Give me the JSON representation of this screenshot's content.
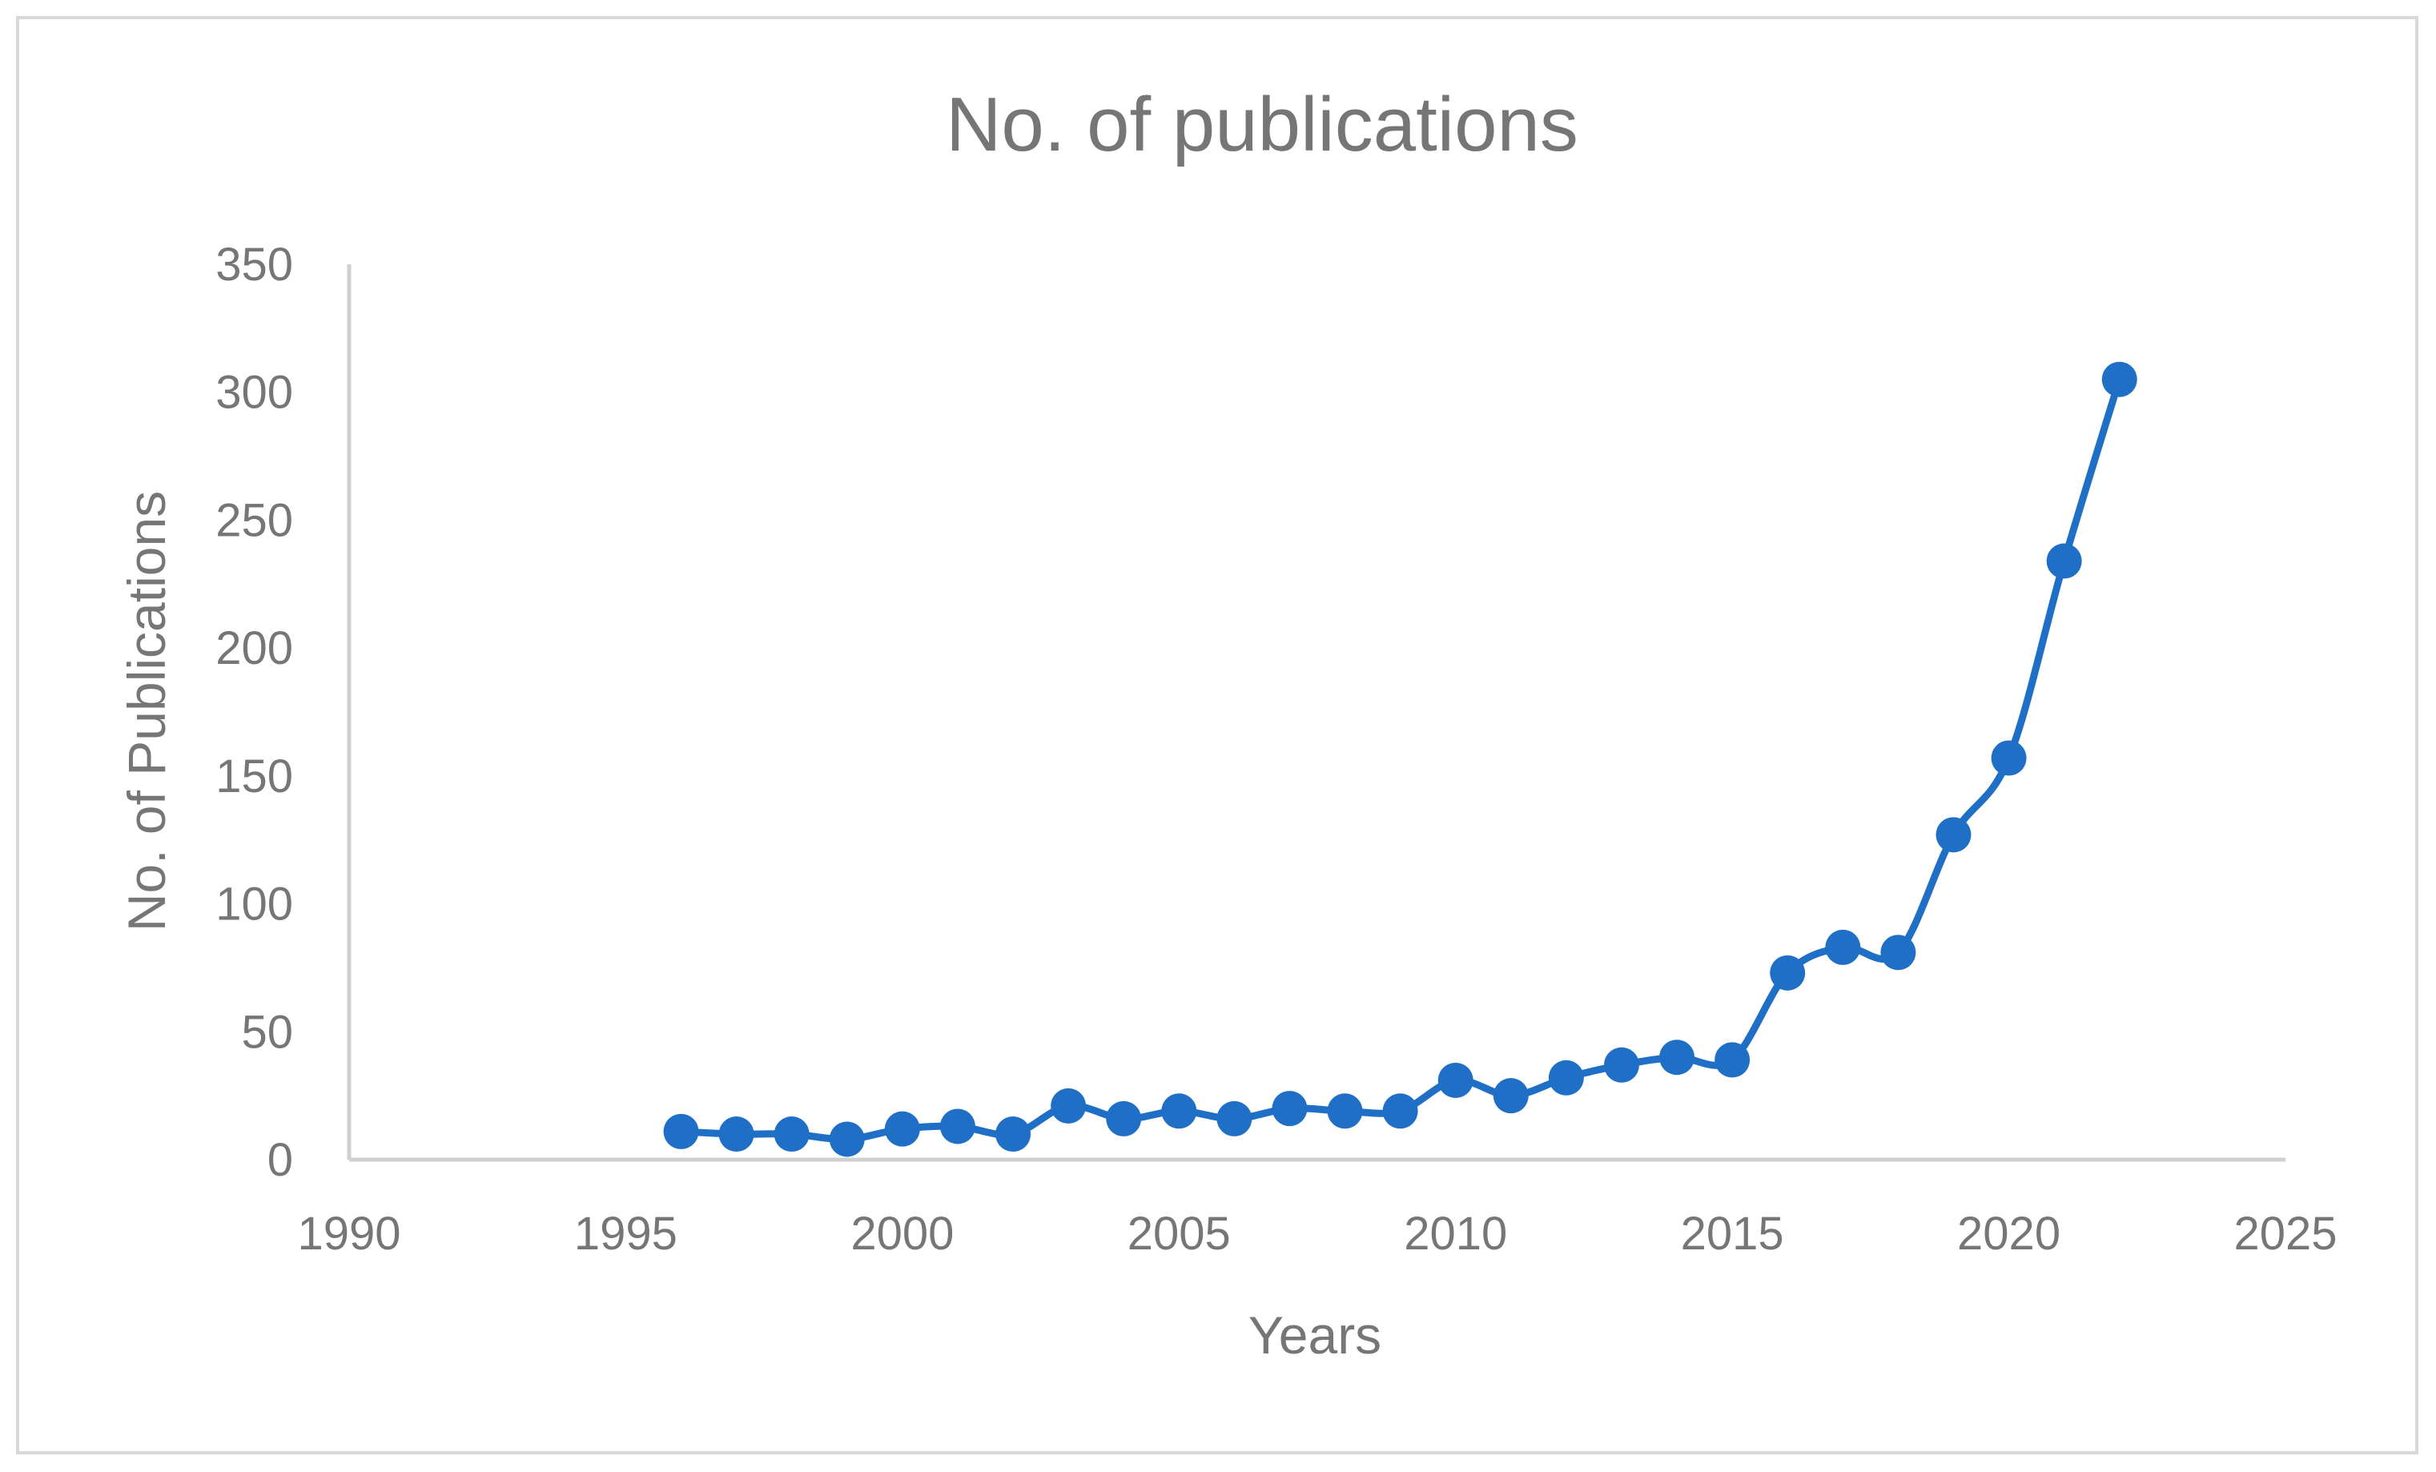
{
  "chart_data": {
    "type": "scatter",
    "title": "No. of publications",
    "xlabel": "Years",
    "ylabel": "No. of Publications",
    "xlim": [
      1990,
      2025
    ],
    "ylim": [
      0,
      350
    ],
    "xticks": [
      1990,
      1995,
      2000,
      2005,
      2010,
      2015,
      2020,
      2025
    ],
    "yticks": [
      0,
      50,
      100,
      150,
      200,
      250,
      300,
      350
    ],
    "grid": false,
    "legend": "none",
    "smoothed_line": true,
    "series_color": "#1f6fc6",
    "series": [
      {
        "x": [
          1996,
          1997,
          1998,
          1999,
          2000,
          2001,
          2002,
          2003,
          2004,
          2005,
          2006,
          2007,
          2008,
          2009,
          2010,
          2011,
          2012,
          2013,
          2014,
          2015,
          2016,
          2017,
          2018,
          2019,
          2020,
          2021,
          2022
        ],
        "y": [
          11,
          10,
          10,
          8,
          12,
          13,
          10,
          21,
          16,
          19,
          16,
          20,
          19,
          19,
          31,
          25,
          32,
          37,
          40,
          39,
          73,
          83,
          81,
          127,
          157,
          234,
          305
        ]
      }
    ]
  }
}
